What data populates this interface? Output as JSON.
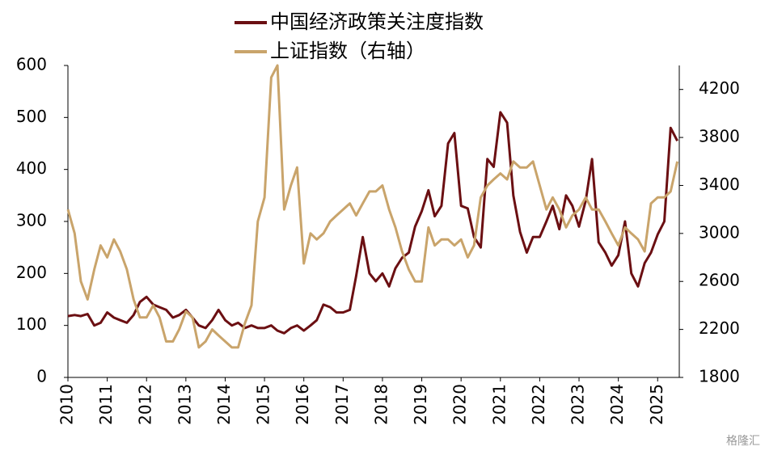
{
  "chart_data": {
    "type": "line",
    "legend": "top",
    "watermark": "格隆汇",
    "x": [
      2010,
      2010.17,
      2010.33,
      2010.5,
      2010.67,
      2010.83,
      2011,
      2011.17,
      2011.33,
      2011.5,
      2011.67,
      2011.83,
      2012,
      2012.17,
      2012.33,
      2012.5,
      2012.67,
      2012.83,
      2013,
      2013.17,
      2013.33,
      2013.5,
      2013.67,
      2013.83,
      2014,
      2014.17,
      2014.33,
      2014.5,
      2014.67,
      2014.83,
      2015,
      2015.17,
      2015.33,
      2015.5,
      2015.67,
      2015.83,
      2016,
      2016.17,
      2016.33,
      2016.5,
      2016.67,
      2016.83,
      2017,
      2017.17,
      2017.33,
      2017.5,
      2017.67,
      2017.83,
      2018,
      2018.17,
      2018.33,
      2018.5,
      2018.67,
      2018.83,
      2019,
      2019.17,
      2019.33,
      2019.5,
      2019.67,
      2019.83,
      2020,
      2020.17,
      2020.33,
      2020.5,
      2020.67,
      2020.83,
      2021,
      2021.17,
      2021.33,
      2021.5,
      2021.67,
      2021.83,
      2022,
      2022.17,
      2022.33,
      2022.5,
      2022.67,
      2022.83,
      2023,
      2023.17,
      2023.33,
      2023.5,
      2023.67,
      2023.83,
      2024,
      2024.17,
      2024.33,
      2024.5,
      2024.67,
      2024.83,
      2025,
      2025.17,
      2025.33,
      2025.5
    ],
    "xlim": [
      2010,
      2025.55
    ],
    "xticks": [
      2010,
      2011,
      2012,
      2013,
      2014,
      2015,
      2016,
      2017,
      2018,
      2019,
      2020,
      2021,
      2022,
      2023,
      2024,
      2025
    ],
    "ylim": [
      0,
      600
    ],
    "yticks": [
      0,
      100,
      200,
      300,
      400,
      500,
      600
    ],
    "y2lim": [
      1800,
      4400
    ],
    "y2ticks": [
      1800,
      2200,
      2600,
      3000,
      3400,
      3800,
      4200
    ],
    "series": [
      {
        "name": "中国经济政策关注度指数",
        "color": "#6b0f12",
        "values": [
          118,
          120,
          118,
          122,
          100,
          105,
          125,
          115,
          110,
          105,
          120,
          145,
          155,
          140,
          135,
          130,
          115,
          120,
          130,
          115,
          100,
          95,
          110,
          130,
          110,
          100,
          105,
          95,
          100,
          95,
          95,
          100,
          90,
          85,
          95,
          100,
          90,
          100,
          110,
          140,
          135,
          125,
          125,
          130,
          195,
          270,
          200,
          185,
          200,
          175,
          210,
          230,
          240,
          290,
          320,
          360,
          310,
          330,
          450,
          470,
          330,
          325,
          270,
          250,
          420,
          405,
          510,
          490,
          350,
          280,
          240,
          270,
          270,
          300,
          330,
          285,
          350,
          330,
          290,
          340,
          420,
          260,
          240,
          215,
          235,
          300,
          200,
          175,
          220,
          240,
          275,
          300,
          480,
          455
        ]
      },
      {
        "name": "上证指数（右轴）",
        "color": "#c9a46b",
        "axis": "y2",
        "values": [
          3200,
          3000,
          2600,
          2450,
          2700,
          2900,
          2800,
          2950,
          2850,
          2700,
          2450,
          2300,
          2300,
          2400,
          2300,
          2100,
          2100,
          2200,
          2350,
          2300,
          2050,
          2100,
          2200,
          2150,
          2100,
          2050,
          2050,
          2250,
          2400,
          3100,
          3300,
          4300,
          4400,
          3200,
          3400,
          3550,
          2750,
          3000,
          2950,
          3000,
          3100,
          3150,
          3200,
          3250,
          3150,
          3250,
          3350,
          3350,
          3400,
          3200,
          3050,
          2850,
          2700,
          2600,
          2600,
          3050,
          2900,
          2950,
          2950,
          2900,
          2950,
          2800,
          2900,
          3300,
          3400,
          3450,
          3500,
          3450,
          3600,
          3550,
          3550,
          3600,
          3400,
          3200,
          3300,
          3200,
          3050,
          3150,
          3200,
          3300,
          3200,
          3200,
          3100,
          3000,
          2900,
          3050,
          3000,
          2950,
          2850,
          3250,
          3300,
          3300,
          3350,
          3600
        ]
      }
    ]
  }
}
